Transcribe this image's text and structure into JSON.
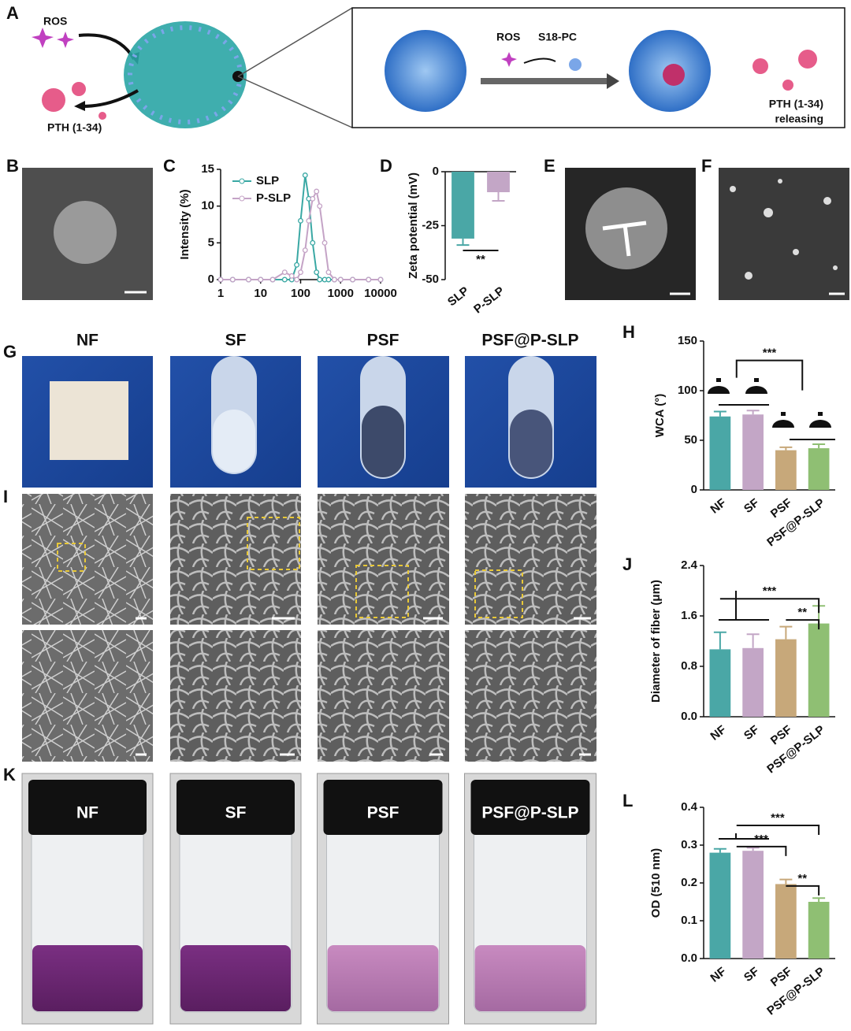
{
  "panel_letters": [
    "A",
    "B",
    "C",
    "D",
    "E",
    "F",
    "G",
    "H",
    "I",
    "J",
    "K",
    "L"
  ],
  "schematic": {
    "ros_left": "ROS",
    "pth_left": "PTH (1-34)",
    "ros_right": "ROS",
    "s18": "S18-PC",
    "pth_right_1": "PTH (1-34)",
    "pth_right_2": "releasing"
  },
  "sample_titles": [
    "NF",
    "SF",
    "PSF",
    "PSF@P-SLP"
  ],
  "chart_data": [
    {
      "type": "line",
      "ylabel": "Intensity (%)",
      "log_x": true,
      "legend": "upper left",
      "x": [
        1,
        2,
        5,
        10,
        20,
        40,
        60,
        80,
        100,
        130,
        160,
        200,
        250,
        300,
        400,
        500,
        700,
        1000,
        2000,
        5000,
        10000
      ],
      "xlim": [
        1,
        10000
      ],
      "xticks": [
        1,
        10,
        100,
        1000,
        10000
      ],
      "ylim": [
        0,
        15
      ],
      "yticks": [
        0,
        5,
        10,
        15
      ],
      "series": [
        {
          "name": "SLP",
          "color": "#3aa8a4",
          "values": [
            0,
            0,
            0,
            0,
            0,
            0,
            0,
            2,
            8,
            14.2,
            11,
            5,
            1,
            0,
            0,
            0,
            0,
            0,
            0,
            0,
            0
          ]
        },
        {
          "name": "P-SLP",
          "color": "#c4a3c6",
          "values": [
            0,
            0,
            0,
            0,
            0,
            1,
            0.5,
            0,
            1,
            4,
            8,
            11,
            12,
            10,
            5,
            1,
            0,
            0,
            0,
            0,
            0
          ]
        }
      ]
    },
    {
      "type": "bar",
      "ylabel": "Zeta potential (mV)",
      "categories": [
        "SLP",
        "P-SLP"
      ],
      "values": [
        -31,
        -9.5
      ],
      "errors": [
        3,
        4
      ],
      "colors": [
        "#4aa7a6",
        "#c3a6c6"
      ],
      "ylim": [
        -50,
        0
      ],
      "yticks": [
        -50,
        -25,
        0
      ],
      "annotations": [
        "**"
      ]
    },
    {
      "type": "bar",
      "ylabel": "WCA (°)",
      "categories": [
        "NF",
        "SF",
        "PSF",
        "PSF@P-SLP"
      ],
      "values": [
        74,
        76,
        40,
        42
      ],
      "errors": [
        5,
        4,
        3,
        4
      ],
      "colors": [
        "#4aa7a6",
        "#c3a6c6",
        "#c7a87a",
        "#8fbf73"
      ],
      "ylim": [
        0,
        150
      ],
      "yticks": [
        0,
        50,
        100,
        150
      ],
      "annotations": [
        "***"
      ]
    },
    {
      "type": "bar",
      "ylabel": "Diameter of fiber (μm)",
      "categories": [
        "NF",
        "SF",
        "PSF",
        "PSF@P-SLP"
      ],
      "values": [
        1.07,
        1.09,
        1.23,
        1.48
      ],
      "errors": [
        0.27,
        0.22,
        0.2,
        0.28
      ],
      "colors": [
        "#4aa7a6",
        "#c3a6c6",
        "#c7a87a",
        "#8fbf73"
      ],
      "ylim": [
        0,
        2.4
      ],
      "yticks": [
        {
          "value": 0,
          "label": "0.0"
        },
        0.8,
        1.6,
        2.4
      ],
      "annotations": [
        "***",
        "**"
      ]
    },
    {
      "type": "bar",
      "ylabel": "OD (510 nm)",
      "categories": [
        "NF",
        "SF",
        "PSF",
        "PSF@P-SLP"
      ],
      "values": [
        0.28,
        0.285,
        0.197,
        0.15
      ],
      "errors": [
        0.01,
        0.008,
        0.012,
        0.01
      ],
      "colors": [
        "#4aa7a6",
        "#c3a6c6",
        "#c7a87a",
        "#8fbf73"
      ],
      "ylim": [
        0,
        0.4
      ],
      "yticks": [
        {
          "value": 0,
          "label": "0.0"
        },
        0.1,
        0.2,
        0.3,
        0.4
      ],
      "annotations": [
        "***",
        "***",
        "**"
      ]
    }
  ]
}
